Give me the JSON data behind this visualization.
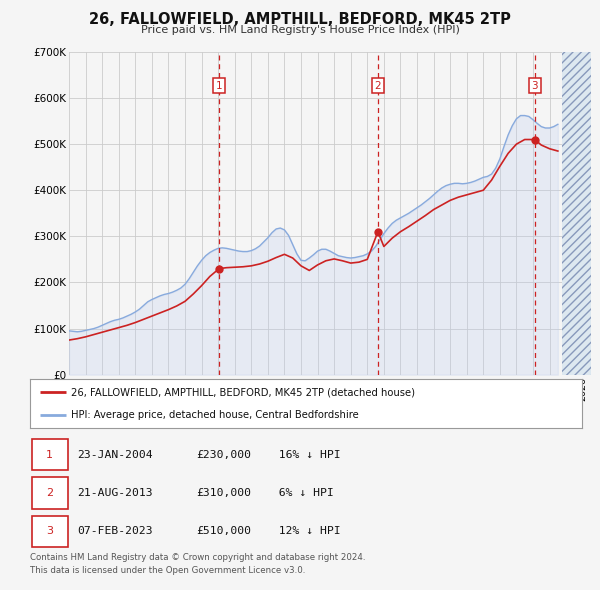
{
  "title": "26, FALLOWFIELD, AMPTHILL, BEDFORD, MK45 2TP",
  "subtitle": "Price paid vs. HM Land Registry's House Price Index (HPI)",
  "ylim": [
    0,
    700000
  ],
  "yticks": [
    0,
    100000,
    200000,
    300000,
    400000,
    500000,
    600000,
    700000
  ],
  "ytick_labels": [
    "£0",
    "£100K",
    "£200K",
    "£300K",
    "£400K",
    "£500K",
    "£600K",
    "£700K"
  ],
  "xlim_start": 1995.0,
  "xlim_end": 2026.5,
  "background_color": "#f5f5f5",
  "plot_bg_color": "#f5f5f5",
  "grid_color": "#cccccc",
  "hpi_line_color": "#88aadd",
  "hpi_fill_color": "#bbccee",
  "price_line_color": "#cc2222",
  "sale_marker_color": "#cc2222",
  "vline_color": "#cc2222",
  "transactions": [
    {
      "num": 1,
      "date_label": "23-JAN-2004",
      "year": 2004.06,
      "price": 230000,
      "pct": "16%",
      "direction": "↓"
    },
    {
      "num": 2,
      "date_label": "21-AUG-2013",
      "year": 2013.64,
      "price": 310000,
      "pct": "6%",
      "direction": "↓"
    },
    {
      "num": 3,
      "date_label": "07-FEB-2023",
      "year": 2023.1,
      "price": 510000,
      "pct": "12%",
      "direction": "↓"
    }
  ],
  "legend_price_label": "26, FALLOWFIELD, AMPTHILL, BEDFORD, MK45 2TP (detached house)",
  "legend_hpi_label": "HPI: Average price, detached house, Central Bedfordshire",
  "footer_line1": "Contains HM Land Registry data © Crown copyright and database right 2024.",
  "footer_line2": "This data is licensed under the Open Government Licence v3.0.",
  "hpi_data_x": [
    1995.0,
    1995.25,
    1995.5,
    1995.75,
    1996.0,
    1996.25,
    1996.5,
    1996.75,
    1997.0,
    1997.25,
    1997.5,
    1997.75,
    1998.0,
    1998.25,
    1998.5,
    1998.75,
    1999.0,
    1999.25,
    1999.5,
    1999.75,
    2000.0,
    2000.25,
    2000.5,
    2000.75,
    2001.0,
    2001.25,
    2001.5,
    2001.75,
    2002.0,
    2002.25,
    2002.5,
    2002.75,
    2003.0,
    2003.25,
    2003.5,
    2003.75,
    2004.0,
    2004.25,
    2004.5,
    2004.75,
    2005.0,
    2005.25,
    2005.5,
    2005.75,
    2006.0,
    2006.25,
    2006.5,
    2006.75,
    2007.0,
    2007.25,
    2007.5,
    2007.75,
    2008.0,
    2008.25,
    2008.5,
    2008.75,
    2009.0,
    2009.25,
    2009.5,
    2009.75,
    2010.0,
    2010.25,
    2010.5,
    2010.75,
    2011.0,
    2011.25,
    2011.5,
    2011.75,
    2012.0,
    2012.25,
    2012.5,
    2012.75,
    2013.0,
    2013.25,
    2013.5,
    2013.75,
    2014.0,
    2014.25,
    2014.5,
    2014.75,
    2015.0,
    2015.25,
    2015.5,
    2015.75,
    2016.0,
    2016.25,
    2016.5,
    2016.75,
    2017.0,
    2017.25,
    2017.5,
    2017.75,
    2018.0,
    2018.25,
    2018.5,
    2018.75,
    2019.0,
    2019.25,
    2019.5,
    2019.75,
    2020.0,
    2020.25,
    2020.5,
    2020.75,
    2021.0,
    2021.25,
    2021.5,
    2021.75,
    2022.0,
    2022.25,
    2022.5,
    2022.75,
    2023.0,
    2023.25,
    2023.5,
    2023.75,
    2024.0,
    2024.25,
    2024.5
  ],
  "hpi_data_y": [
    95000,
    94000,
    93000,
    94000,
    96000,
    98000,
    100000,
    103000,
    107000,
    111000,
    115000,
    118000,
    120000,
    123000,
    127000,
    131000,
    136000,
    142000,
    150000,
    158000,
    163000,
    167000,
    171000,
    174000,
    176000,
    179000,
    183000,
    188000,
    196000,
    208000,
    222000,
    236000,
    248000,
    258000,
    265000,
    270000,
    274000,
    275000,
    274000,
    272000,
    270000,
    268000,
    267000,
    267000,
    269000,
    273000,
    279000,
    288000,
    297000,
    308000,
    316000,
    318000,
    314000,
    302000,
    282000,
    262000,
    248000,
    247000,
    253000,
    260000,
    268000,
    272000,
    272000,
    268000,
    263000,
    258000,
    256000,
    254000,
    253000,
    254000,
    256000,
    258000,
    262000,
    268000,
    278000,
    292000,
    306000,
    318000,
    328000,
    335000,
    340000,
    345000,
    350000,
    356000,
    362000,
    368000,
    375000,
    382000,
    390000,
    398000,
    405000,
    410000,
    413000,
    415000,
    415000,
    414000,
    415000,
    417000,
    420000,
    424000,
    428000,
    430000,
    435000,
    448000,
    468000,
    495000,
    520000,
    540000,
    555000,
    562000,
    562000,
    560000,
    553000,
    545000,
    538000,
    535000,
    535000,
    538000,
    543000
  ],
  "price_data_x": [
    1995.0,
    1995.5,
    1996.0,
    1996.5,
    1997.0,
    1997.5,
    1998.0,
    1998.5,
    1999.0,
    1999.5,
    2000.0,
    2000.5,
    2001.0,
    2001.5,
    2002.0,
    2002.5,
    2003.0,
    2003.5,
    2004.06,
    2004.5,
    2005.0,
    2005.5,
    2006.0,
    2006.5,
    2007.0,
    2007.5,
    2008.0,
    2008.5,
    2009.0,
    2009.5,
    2010.0,
    2010.5,
    2011.0,
    2011.5,
    2012.0,
    2012.5,
    2013.0,
    2013.64,
    2014.0,
    2014.5,
    2015.0,
    2015.5,
    2016.0,
    2016.5,
    2017.0,
    2017.5,
    2018.0,
    2018.5,
    2019.0,
    2019.5,
    2020.0,
    2020.5,
    2021.0,
    2021.5,
    2022.0,
    2022.5,
    2023.1,
    2023.5,
    2024.0,
    2024.5
  ],
  "price_data_y": [
    75000,
    78000,
    82000,
    87000,
    92000,
    97000,
    102000,
    107000,
    113000,
    120000,
    127000,
    134000,
    141000,
    149000,
    159000,
    175000,
    193000,
    213000,
    230000,
    232000,
    233000,
    234000,
    236000,
    240000,
    246000,
    254000,
    261000,
    253000,
    236000,
    226000,
    238000,
    247000,
    251000,
    247000,
    242000,
    244000,
    250000,
    310000,
    278000,
    296000,
    310000,
    321000,
    333000,
    345000,
    358000,
    368000,
    378000,
    385000,
    390000,
    395000,
    400000,
    422000,
    452000,
    480000,
    500000,
    510000,
    510000,
    498000,
    490000,
    485000
  ],
  "hatch_start": 2024.75,
  "future_bg_color": "#dde8f0"
}
